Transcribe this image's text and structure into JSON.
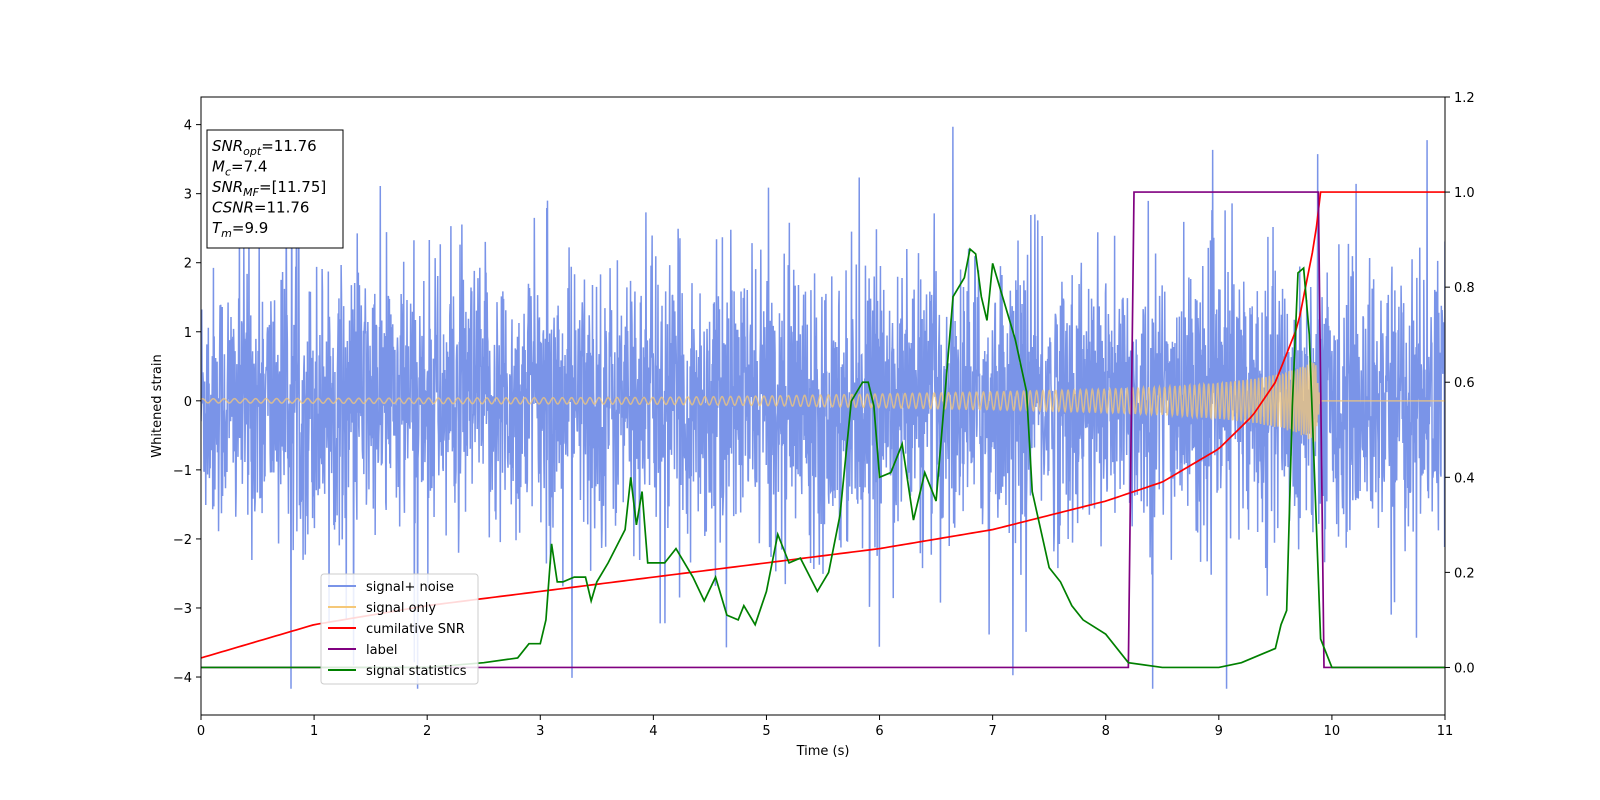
{
  "chart_data": {
    "type": "line",
    "title": "",
    "xlabel": "Time (s)",
    "ylabel": "Whitened strain",
    "xlim": [
      0,
      11
    ],
    "ylim_left": [
      -4.55,
      4.4
    ],
    "ylim_right": [
      -0.1,
      1.2
    ],
    "x_ticks": [
      "0",
      "1",
      "2",
      "3",
      "4",
      "5",
      "6",
      "7",
      "8",
      "9",
      "10",
      "11"
    ],
    "y_ticks_left": [
      "−4",
      "−3",
      "−2",
      "−1",
      "0",
      "1",
      "2",
      "3",
      "4"
    ],
    "y_ticks_right": [
      "0.0",
      "0.2",
      "0.4",
      "0.6",
      "0.8",
      "1.0",
      "1.2"
    ],
    "grid": false,
    "legend_position": "lower-left",
    "info_box": {
      "lines": [
        {
          "base": "SNR",
          "sub": "opt",
          "rest": "=11.76"
        },
        {
          "base": "M",
          "sub": "c",
          "rest": "=7.4"
        },
        {
          "base": "SNR",
          "sub": "MF",
          "rest": "=[11.75]"
        },
        {
          "base": "CSNR",
          "sub": "",
          "rest": "=11.76"
        },
        {
          "base": "T",
          "sub": "m",
          "rest": "=9.9"
        }
      ]
    },
    "series": [
      {
        "name": "signal+ noise",
        "color": "#7a94e8",
        "axis": "left",
        "kind": "noise",
        "t_range": [
          0,
          11
        ],
        "typical_amplitude": 1.3,
        "peak_max": 3.97,
        "peak_min": -4.17
      },
      {
        "name": "signal only",
        "color": "#f5c878",
        "axis": "left",
        "kind": "chirp",
        "t_range": [
          0,
          9.9
        ],
        "envelope_t": [
          0,
          2,
          4,
          5,
          6,
          7,
          8,
          8.5,
          9,
          9.3,
          9.5,
          9.7,
          9.85,
          9.9
        ],
        "envelope_a": [
          0.03,
          0.04,
          0.05,
          0.07,
          0.1,
          0.13,
          0.17,
          0.2,
          0.26,
          0.32,
          0.38,
          0.47,
          0.62,
          0.0
        ]
      },
      {
        "name": "cumilative SNR",
        "color": "#ff0000",
        "axis": "right",
        "t": [
          0,
          1,
          2,
          3,
          4,
          5,
          6,
          7,
          8,
          8.5,
          9,
          9.3,
          9.5,
          9.7,
          9.85,
          9.9,
          10,
          11
        ],
        "values": [
          0.02,
          0.09,
          0.13,
          0.16,
          0.19,
          0.22,
          0.25,
          0.29,
          0.35,
          0.39,
          0.46,
          0.53,
          0.6,
          0.72,
          0.9,
          1.0,
          1.0,
          1.0
        ]
      },
      {
        "name": "label",
        "color": "#800080",
        "axis": "right",
        "t": [
          0,
          8.2,
          8.25,
          9.88,
          9.93,
          11
        ],
        "values": [
          0.0,
          0.0,
          1.0,
          1.0,
          0.0,
          0.0
        ]
      },
      {
        "name": "signal statistics",
        "color": "#008000",
        "axis": "right",
        "t": [
          0,
          1,
          2,
          2.5,
          2.8,
          2.9,
          3,
          3.05,
          3.1,
          3.15,
          3.2,
          3.3,
          3.4,
          3.45,
          3.5,
          3.6,
          3.75,
          3.8,
          3.85,
          3.9,
          3.95,
          4.1,
          4.2,
          4.35,
          4.45,
          4.55,
          4.65,
          4.75,
          4.8,
          4.9,
          5.0,
          5.1,
          5.2,
          5.3,
          5.45,
          5.55,
          5.65,
          5.75,
          5.85,
          5.9,
          5.95,
          6.0,
          6.1,
          6.2,
          6.3,
          6.4,
          6.5,
          6.65,
          6.7,
          6.75,
          6.8,
          6.85,
          6.9,
          6.95,
          7.0,
          7.1,
          7.2,
          7.3,
          7.35,
          7.5,
          7.6,
          7.7,
          7.8,
          8.0,
          8.2,
          8.5,
          9.0,
          9.2,
          9.4,
          9.5,
          9.55,
          9.6,
          9.65,
          9.7,
          9.75,
          9.8,
          9.85,
          9.9,
          10.0,
          11.0
        ],
        "values": [
          0.0,
          0.0,
          0.0,
          0.01,
          0.02,
          0.05,
          0.05,
          0.1,
          0.26,
          0.18,
          0.18,
          0.19,
          0.19,
          0.14,
          0.18,
          0.22,
          0.29,
          0.4,
          0.3,
          0.37,
          0.22,
          0.22,
          0.25,
          0.19,
          0.14,
          0.19,
          0.11,
          0.1,
          0.13,
          0.09,
          0.16,
          0.28,
          0.22,
          0.23,
          0.16,
          0.2,
          0.32,
          0.56,
          0.6,
          0.6,
          0.55,
          0.4,
          0.41,
          0.47,
          0.31,
          0.41,
          0.35,
          0.78,
          0.8,
          0.82,
          0.88,
          0.87,
          0.78,
          0.73,
          0.85,
          0.77,
          0.69,
          0.58,
          0.37,
          0.21,
          0.18,
          0.13,
          0.1,
          0.07,
          0.01,
          0.0,
          0.0,
          0.01,
          0.03,
          0.04,
          0.09,
          0.12,
          0.55,
          0.83,
          0.84,
          0.7,
          0.38,
          0.06,
          0.0,
          0.0
        ]
      }
    ]
  }
}
